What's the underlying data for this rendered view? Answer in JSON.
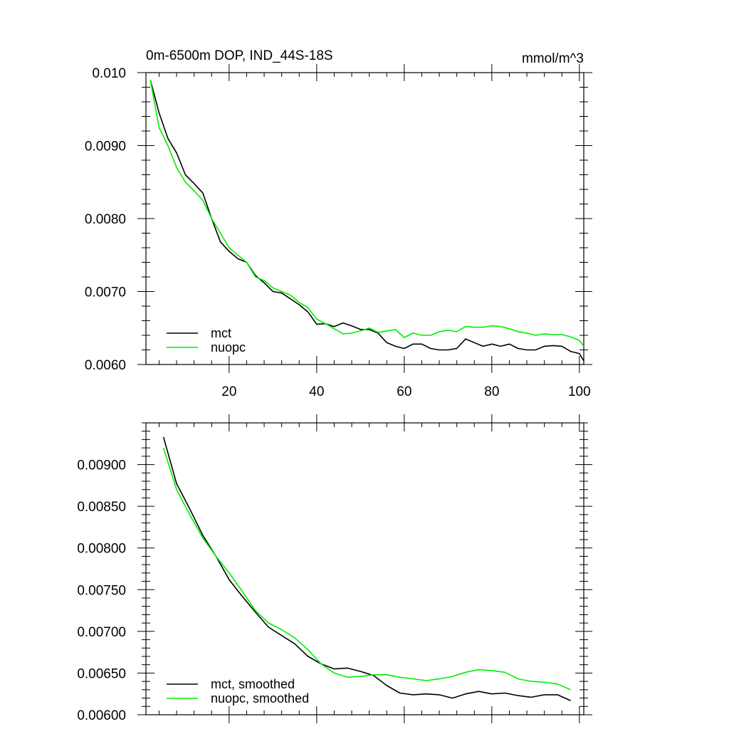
{
  "chart_data": [
    {
      "type": "line",
      "title": "0m-6500m DOP, IND_44S-18S",
      "units": "mmol/m^3",
      "xlim": [
        1,
        101
      ],
      "ylim": [
        0.006,
        0.01
      ],
      "xticks": [
        20,
        40,
        60,
        80,
        100
      ],
      "xtick_labels": [
        "20",
        "40",
        "60",
        "80",
        "100"
      ],
      "yticks": [
        0.006,
        0.007,
        0.008,
        0.009,
        0.01
      ],
      "ytick_labels": [
        "0.0060",
        "0.0070",
        "0.0080",
        "0.0090",
        "0.010"
      ],
      "legend_position": "bottom-left",
      "series": [
        {
          "name": "mct",
          "color": "#000000",
          "x": [
            2,
            4,
            6,
            8,
            10,
            12,
            14,
            16,
            18,
            20,
            22,
            24,
            26,
            28,
            30,
            32,
            34,
            36,
            38,
            40,
            42,
            44,
            46,
            48,
            50,
            52,
            54,
            56,
            58,
            60,
            62,
            64,
            66,
            68,
            70,
            72,
            74,
            76,
            78,
            80,
            82,
            84,
            86,
            88,
            90,
            92,
            94,
            96,
            98,
            100,
            101
          ],
          "values": [
            0.0099,
            0.00945,
            0.0091,
            0.0089,
            0.0086,
            0.00848,
            0.00835,
            0.008,
            0.00768,
            0.00755,
            0.00745,
            0.0074,
            0.00722,
            0.00712,
            0.007,
            0.00698,
            0.0069,
            0.00682,
            0.00672,
            0.00655,
            0.00656,
            0.00652,
            0.00657,
            0.00653,
            0.00648,
            0.00648,
            0.00643,
            0.0063,
            0.00625,
            0.00622,
            0.00628,
            0.00628,
            0.00622,
            0.0062,
            0.0062,
            0.00622,
            0.00635,
            0.0063,
            0.00625,
            0.00628,
            0.00625,
            0.00628,
            0.00622,
            0.0062,
            0.0062,
            0.00625,
            0.00626,
            0.00625,
            0.00618,
            0.00615,
            0.00605
          ]
        },
        {
          "name": "nuopc",
          "color": "#00ee00",
          "x": [
            2,
            4,
            6,
            8,
            10,
            12,
            14,
            16,
            18,
            20,
            22,
            24,
            26,
            28,
            30,
            32,
            34,
            36,
            38,
            40,
            42,
            44,
            46,
            48,
            50,
            52,
            54,
            56,
            58,
            60,
            62,
            64,
            66,
            68,
            70,
            72,
            74,
            76,
            78,
            80,
            82,
            84,
            86,
            88,
            90,
            92,
            94,
            96,
            98,
            100,
            101
          ],
          "values": [
            0.0099,
            0.00925,
            0.009,
            0.0087,
            0.0085,
            0.00838,
            0.00825,
            0.008,
            0.0078,
            0.0076,
            0.0075,
            0.0074,
            0.0072,
            0.00715,
            0.00705,
            0.007,
            0.00695,
            0.00685,
            0.00678,
            0.00662,
            0.00656,
            0.00649,
            0.00642,
            0.00643,
            0.00646,
            0.0065,
            0.00644,
            0.00646,
            0.00648,
            0.00637,
            0.00643,
            0.0064,
            0.0064,
            0.00645,
            0.00647,
            0.00645,
            0.00652,
            0.00651,
            0.00651,
            0.00653,
            0.00652,
            0.00649,
            0.00645,
            0.00643,
            0.0064,
            0.00642,
            0.00641,
            0.00641,
            0.00638,
            0.00633,
            0.00625
          ]
        }
      ]
    },
    {
      "type": "line",
      "title": "",
      "xlim": [
        1,
        101
      ],
      "ylim": [
        0.006,
        0.0095
      ],
      "xticks": [
        20,
        40,
        60,
        80,
        100
      ],
      "yticks": [
        0.006,
        0.0065,
        0.007,
        0.0075,
        0.008,
        0.0085,
        0.009
      ],
      "ytick_labels": [
        "0.00600",
        "0.00650",
        "0.00700",
        "0.00750",
        "0.00800",
        "0.00850",
        "0.00900"
      ],
      "legend_position": "bottom-left",
      "series": [
        {
          "name": "mct, smoothed",
          "color": "#000000",
          "x": [
            5,
            8,
            11,
            14,
            17,
            20,
            23,
            26,
            29,
            32,
            35,
            38,
            41,
            44,
            47,
            50,
            53,
            56,
            59,
            62,
            65,
            68,
            71,
            74,
            77,
            80,
            83,
            86,
            89,
            92,
            95,
            98
          ],
          "values": [
            0.00933,
            0.00877,
            0.00847,
            0.00815,
            0.0079,
            0.00762,
            0.00742,
            0.00723,
            0.00705,
            0.00695,
            0.00685,
            0.0067,
            0.00661,
            0.00655,
            0.00656,
            0.00652,
            0.00647,
            0.00635,
            0.00626,
            0.00624,
            0.00625,
            0.00624,
            0.0062,
            0.00625,
            0.00628,
            0.00625,
            0.00626,
            0.00623,
            0.00621,
            0.00624,
            0.00624,
            0.00617
          ]
        },
        {
          "name": "nuopc, smoothed",
          "color": "#00ee00",
          "x": [
            5,
            8,
            11,
            14,
            17,
            20,
            23,
            26,
            29,
            32,
            35,
            38,
            41,
            44,
            47,
            50,
            53,
            56,
            59,
            62,
            65,
            68,
            71,
            74,
            77,
            80,
            83,
            86,
            89,
            92,
            95,
            98
          ],
          "values": [
            0.0092,
            0.0087,
            0.0084,
            0.00812,
            0.0079,
            0.0077,
            0.00748,
            0.00725,
            0.0071,
            0.00702,
            0.00692,
            0.00678,
            0.00661,
            0.0065,
            0.00645,
            0.00646,
            0.00648,
            0.00648,
            0.00645,
            0.00643,
            0.00641,
            0.00643,
            0.00646,
            0.00651,
            0.00654,
            0.00653,
            0.00651,
            0.00643,
            0.0064,
            0.00639,
            0.00637,
            0.0063
          ]
        }
      ]
    }
  ]
}
